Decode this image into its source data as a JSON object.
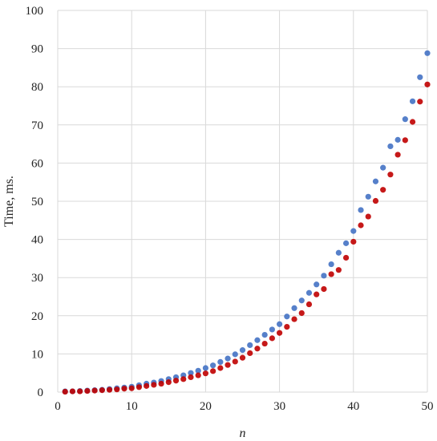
{
  "chart_data": {
    "type": "scatter",
    "title": "",
    "xlabel": "n",
    "ylabel": "Time, ms.",
    "xlim": [
      0,
      50
    ],
    "ylim": [
      0,
      100
    ],
    "x_ticks": [
      0,
      10,
      20,
      30,
      40,
      50
    ],
    "y_ticks": [
      0,
      10,
      20,
      30,
      40,
      50,
      60,
      70,
      80,
      90,
      100
    ],
    "grid": true,
    "legend": "none",
    "series": [
      {
        "color": "#4472C4",
        "x": [
          1,
          2,
          3,
          4,
          5,
          6,
          7,
          8,
          9,
          10,
          11,
          12,
          13,
          14,
          15,
          16,
          17,
          18,
          19,
          20,
          21,
          22,
          23,
          24,
          25,
          26,
          27,
          28,
          29,
          30,
          31,
          32,
          33,
          34,
          35,
          36,
          37,
          38,
          39,
          40,
          41,
          42,
          43,
          44,
          45,
          46,
          47,
          48,
          49,
          50
        ],
        "y": [
          0.2,
          0.2,
          0.3,
          0.4,
          0.5,
          0.6,
          0.8,
          1.0,
          1.2,
          1.4,
          1.8,
          2.2,
          2.5,
          2.9,
          3.4,
          3.9,
          4.4,
          5.0,
          5.6,
          6.3,
          7.0,
          7.9,
          8.8,
          9.9,
          11.0,
          12.3,
          13.6,
          15.0,
          16.4,
          17.8,
          19.8,
          22.0,
          24.0,
          26.0,
          28.2,
          30.5,
          33.5,
          36.5,
          39.0,
          42.2,
          47.7,
          51.2,
          55.2,
          58.8,
          64.4,
          66.1,
          71.5,
          76.2,
          82.5,
          88.8
        ]
      },
      {
        "color": "#C00000",
        "x": [
          1,
          2,
          3,
          4,
          5,
          6,
          7,
          8,
          9,
          10,
          11,
          12,
          13,
          14,
          15,
          16,
          17,
          18,
          19,
          20,
          21,
          22,
          23,
          24,
          25,
          26,
          27,
          28,
          29,
          30,
          31,
          32,
          33,
          34,
          35,
          36,
          37,
          38,
          39,
          40,
          41,
          42,
          43,
          44,
          45,
          46,
          47,
          48,
          49,
          50
        ],
        "y": [
          0.1,
          0.2,
          0.2,
          0.3,
          0.4,
          0.5,
          0.6,
          0.7,
          0.9,
          1.0,
          1.3,
          1.6,
          1.9,
          2.2,
          2.6,
          3.0,
          3.4,
          3.9,
          4.4,
          4.9,
          5.5,
          6.3,
          7.1,
          8.0,
          9.0,
          10.2,
          11.4,
          12.7,
          14.1,
          15.5,
          17.1,
          19.1,
          20.7,
          23.0,
          25.6,
          27.0,
          30.9,
          32.0,
          35.2,
          39.4,
          43.7,
          46.0,
          50.1,
          53.0,
          57.0,
          62.2,
          66.0,
          70.8,
          76.1,
          80.6
        ]
      }
    ]
  }
}
